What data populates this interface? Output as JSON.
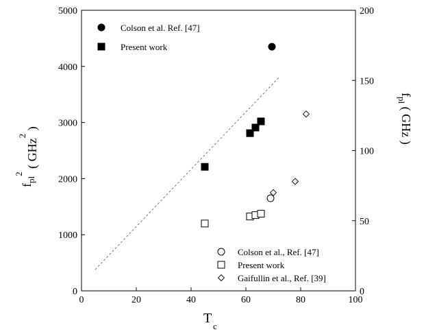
{
  "chart_data": {
    "type": "scatter",
    "xlabel": "T",
    "xlabel_sub": "c",
    "ylabel": {
      "base": "f",
      "sub": "pl",
      "sup": "2",
      "unit_open": " ( GHz",
      "unit_sup": "2",
      "unit_close": " )"
    },
    "ylabel_right": {
      "base": "f",
      "sub": "pl",
      "unit": " ( GHz )"
    },
    "xlim": [
      0,
      100
    ],
    "ylim": [
      0,
      5000
    ],
    "ylim_right": [
      0,
      200
    ],
    "x_ticks": [
      "0",
      "20",
      "40",
      "60",
      "80",
      "100"
    ],
    "y_ticks": [
      "0",
      "1000",
      "2000",
      "3000",
      "4000",
      "5000"
    ],
    "y_ticks_right": [
      "0",
      "50",
      "100",
      "150",
      "200"
    ],
    "grid": false,
    "legend_top": {
      "placement": "top-left",
      "entries": [
        {
          "label": "Colson et al. Ref. [47]",
          "marker": "filled-circle"
        },
        {
          "label": "Present work",
          "marker": "filled-square"
        }
      ]
    },
    "legend_bottom": {
      "placement": "bottom-right",
      "entries": [
        {
          "label": "Colson et al., Ref. [47]",
          "marker": "open-circle"
        },
        {
          "label": "Present work",
          "marker": "open-square"
        },
        {
          "label": "Gaifullin et al., Ref. [39]",
          "marker": "open-diamond"
        }
      ]
    },
    "series": [
      {
        "axis": "left",
        "marker": "filled-circle",
        "points": [
          [
            69.5,
            4350
          ]
        ]
      },
      {
        "axis": "left",
        "marker": "filled-square",
        "points": [
          [
            45,
            2210
          ],
          [
            61.5,
            2810
          ],
          [
            63.5,
            2910
          ],
          [
            65.5,
            3020
          ]
        ]
      },
      {
        "axis": "right",
        "marker": "open-circle",
        "points": [
          [
            69,
            66
          ]
        ]
      },
      {
        "axis": "right",
        "marker": "open-square",
        "points": [
          [
            45,
            48
          ],
          [
            61.5,
            53
          ],
          [
            63.5,
            54
          ],
          [
            65.5,
            55
          ]
        ]
      },
      {
        "axis": "right",
        "marker": "open-diamond",
        "points": [
          [
            70,
            70
          ],
          [
            78,
            78
          ],
          [
            82,
            126
          ]
        ]
      }
    ],
    "fit_line": {
      "axis": "left",
      "style": "dashed",
      "from": [
        5,
        380
      ],
      "to": [
        72,
        3800
      ]
    }
  }
}
